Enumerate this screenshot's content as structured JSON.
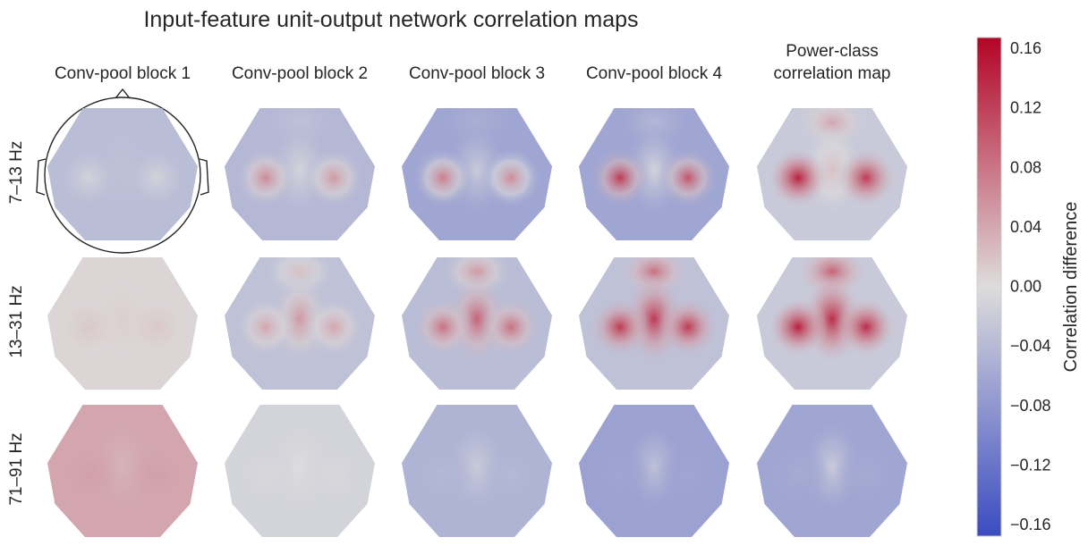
{
  "title": "Input-feature unit-output network correlation maps",
  "columns": [
    "Conv-pool block 1",
    "Conv-pool block 2",
    "Conv-pool block 3",
    "Conv-pool block 4",
    "Power-class correlation map"
  ],
  "rows": [
    "7–13 Hz",
    "13–31 Hz",
    "71–91 Hz"
  ],
  "colorbar": {
    "label": "Correlation difference",
    "ticks": [
      "0.16",
      "0.12",
      "0.08",
      "0.04",
      "0.00",
      "−0.04",
      "−0.08",
      "−0.12",
      "−0.16"
    ],
    "min": -0.16,
    "max": 0.16,
    "colormap": "coolwarm",
    "colors": {
      "low": "#3b4cc0",
      "mid": "#dddcdc",
      "high": "#b40426"
    }
  },
  "chart_data": {
    "type": "heatmap",
    "title": "Input-feature unit-output network correlation maps",
    "description": "3x5 grid of scalp topographic maps; values are approximate correlation differences per region",
    "regions": [
      "background",
      "left_motor",
      "right_motor",
      "central_vertex",
      "frontal"
    ],
    "maps": [
      {
        "row": "7–13 Hz",
        "column": "Conv-pool block 1",
        "background": -0.035,
        "left_motor": -0.01,
        "right_motor": -0.01,
        "central_vertex": -0.03,
        "frontal": -0.035,
        "head_outline": true
      },
      {
        "row": "7–13 Hz",
        "column": "Conv-pool block 2",
        "background": -0.04,
        "left_motor": 0.06,
        "right_motor": 0.05,
        "central_vertex": -0.01,
        "frontal": -0.03
      },
      {
        "row": "7–13 Hz",
        "column": "Conv-pool block 3",
        "background": -0.06,
        "left_motor": 0.07,
        "right_motor": 0.06,
        "central_vertex": -0.02,
        "frontal": -0.05
      },
      {
        "row": "7–13 Hz",
        "column": "Conv-pool block 4",
        "background": -0.06,
        "left_motor": 0.12,
        "right_motor": 0.1,
        "central_vertex": -0.01,
        "frontal": -0.04
      },
      {
        "row": "7–13 Hz",
        "column": "Power-class correlation map",
        "background": -0.02,
        "left_motor": 0.14,
        "right_motor": 0.12,
        "central_vertex": 0.02,
        "frontal": 0.04
      },
      {
        "row": "13–31 Hz",
        "column": "Conv-pool block 1",
        "background": 0.005,
        "left_motor": 0.015,
        "right_motor": 0.015,
        "central_vertex": 0.01,
        "frontal": 0.005
      },
      {
        "row": "13–31 Hz",
        "column": "Conv-pool block 2",
        "background": -0.03,
        "left_motor": 0.04,
        "right_motor": 0.04,
        "central_vertex": 0.05,
        "frontal": 0.02
      },
      {
        "row": "13–31 Hz",
        "column": "Conv-pool block 3",
        "background": -0.035,
        "left_motor": 0.08,
        "right_motor": 0.08,
        "central_vertex": 0.09,
        "frontal": 0.05
      },
      {
        "row": "13–31 Hz",
        "column": "Conv-pool block 4",
        "background": -0.03,
        "left_motor": 0.12,
        "right_motor": 0.12,
        "central_vertex": 0.12,
        "frontal": 0.08
      },
      {
        "row": "13–31 Hz",
        "column": "Power-class correlation map",
        "background": -0.02,
        "left_motor": 0.14,
        "right_motor": 0.13,
        "central_vertex": 0.13,
        "frontal": 0.09
      },
      {
        "row": "71–91 Hz",
        "column": "Conv-pool block 1",
        "background": 0.04,
        "left_motor": 0.045,
        "right_motor": 0.045,
        "central_vertex": 0.03,
        "frontal": 0.04
      },
      {
        "row": "71–91 Hz",
        "column": "Conv-pool block 2",
        "background": -0.01,
        "left_motor": -0.005,
        "right_motor": -0.005,
        "central_vertex": 0.0,
        "frontal": -0.01
      },
      {
        "row": "71–91 Hz",
        "column": "Conv-pool block 3",
        "background": -0.045,
        "left_motor": -0.04,
        "right_motor": -0.04,
        "central_vertex": -0.02,
        "frontal": -0.045
      },
      {
        "row": "71–91 Hz",
        "column": "Conv-pool block 4",
        "background": -0.065,
        "left_motor": -0.06,
        "right_motor": -0.06,
        "central_vertex": -0.03,
        "frontal": -0.065
      },
      {
        "row": "71–91 Hz",
        "column": "Power-class correlation map",
        "background": -0.06,
        "left_motor": -0.055,
        "right_motor": -0.055,
        "central_vertex": -0.02,
        "frontal": -0.06
      }
    ]
  }
}
